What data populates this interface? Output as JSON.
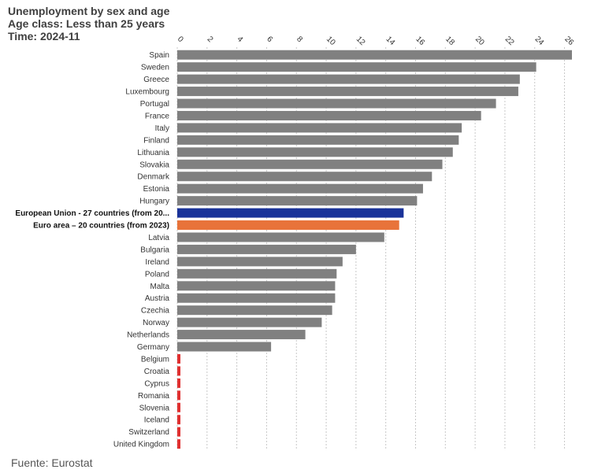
{
  "chart_data": {
    "type": "bar",
    "orientation": "horizontal",
    "title": "Unemployment by sex and age",
    "subtitle_lines": [
      "Age class: Less than 25 years",
      "Time: 2024-11"
    ],
    "source": "Fuente: Eurostat",
    "xlabel": "",
    "ylabel": "",
    "xlim": [
      0,
      26.5
    ],
    "x_ticks": [
      0,
      2,
      4,
      6,
      8,
      10,
      12,
      14,
      16,
      18,
      20,
      22,
      24,
      26
    ],
    "grid": "vertical dotted",
    "legend": "none",
    "colors": {
      "default": "#808080",
      "european_union": "#1a3399",
      "euro_area": "#e8733a",
      "no_data": "#e03030"
    },
    "categories": [
      {
        "label": "Spain",
        "value": 26.5,
        "color": "default"
      },
      {
        "label": "Sweden",
        "value": 24.1,
        "color": "default"
      },
      {
        "label": "Greece",
        "value": 23.0,
        "color": "default"
      },
      {
        "label": "Luxembourg",
        "value": 22.9,
        "color": "default"
      },
      {
        "label": "Portugal",
        "value": 21.4,
        "color": "default"
      },
      {
        "label": "France",
        "value": 20.4,
        "color": "default"
      },
      {
        "label": "Italy",
        "value": 19.1,
        "color": "default"
      },
      {
        "label": "Finland",
        "value": 18.9,
        "color": "default"
      },
      {
        "label": "Lithuania",
        "value": 18.5,
        "color": "default"
      },
      {
        "label": "Slovakia",
        "value": 17.8,
        "color": "default"
      },
      {
        "label": "Denmark",
        "value": 17.1,
        "color": "default"
      },
      {
        "label": "Estonia",
        "value": 16.5,
        "color": "default"
      },
      {
        "label": "Hungary",
        "value": 16.1,
        "color": "default"
      },
      {
        "label": "European Union - 27 countries (from 20...",
        "value": 15.2,
        "color": "european_union",
        "bold": true
      },
      {
        "label": "Euro area – 20 countries (from 2023)",
        "value": 14.9,
        "color": "euro_area",
        "bold": true
      },
      {
        "label": "Latvia",
        "value": 13.9,
        "color": "default"
      },
      {
        "label": "Bulgaria",
        "value": 12.0,
        "color": "default"
      },
      {
        "label": "Ireland",
        "value": 11.1,
        "color": "default"
      },
      {
        "label": "Poland",
        "value": 10.7,
        "color": "default"
      },
      {
        "label": "Malta",
        "value": 10.6,
        "color": "default"
      },
      {
        "label": "Austria",
        "value": 10.6,
        "color": "default"
      },
      {
        "label": "Czechia",
        "value": 10.4,
        "color": "default"
      },
      {
        "label": "Norway",
        "value": 9.7,
        "color": "default"
      },
      {
        "label": "Netherlands",
        "value": 8.6,
        "color": "default"
      },
      {
        "label": "Germany",
        "value": 6.3,
        "color": "default"
      },
      {
        "label": "Belgium",
        "value": null,
        "color": "no_data"
      },
      {
        "label": "Croatia",
        "value": null,
        "color": "no_data"
      },
      {
        "label": "Cyprus",
        "value": null,
        "color": "no_data"
      },
      {
        "label": "Romania",
        "value": null,
        "color": "no_data"
      },
      {
        "label": "Slovenia",
        "value": null,
        "color": "no_data"
      },
      {
        "label": "Iceland",
        "value": null,
        "color": "no_data"
      },
      {
        "label": "Switzerland",
        "value": null,
        "color": "no_data"
      },
      {
        "label": "United Kingdom",
        "value": null,
        "color": "no_data"
      }
    ]
  }
}
